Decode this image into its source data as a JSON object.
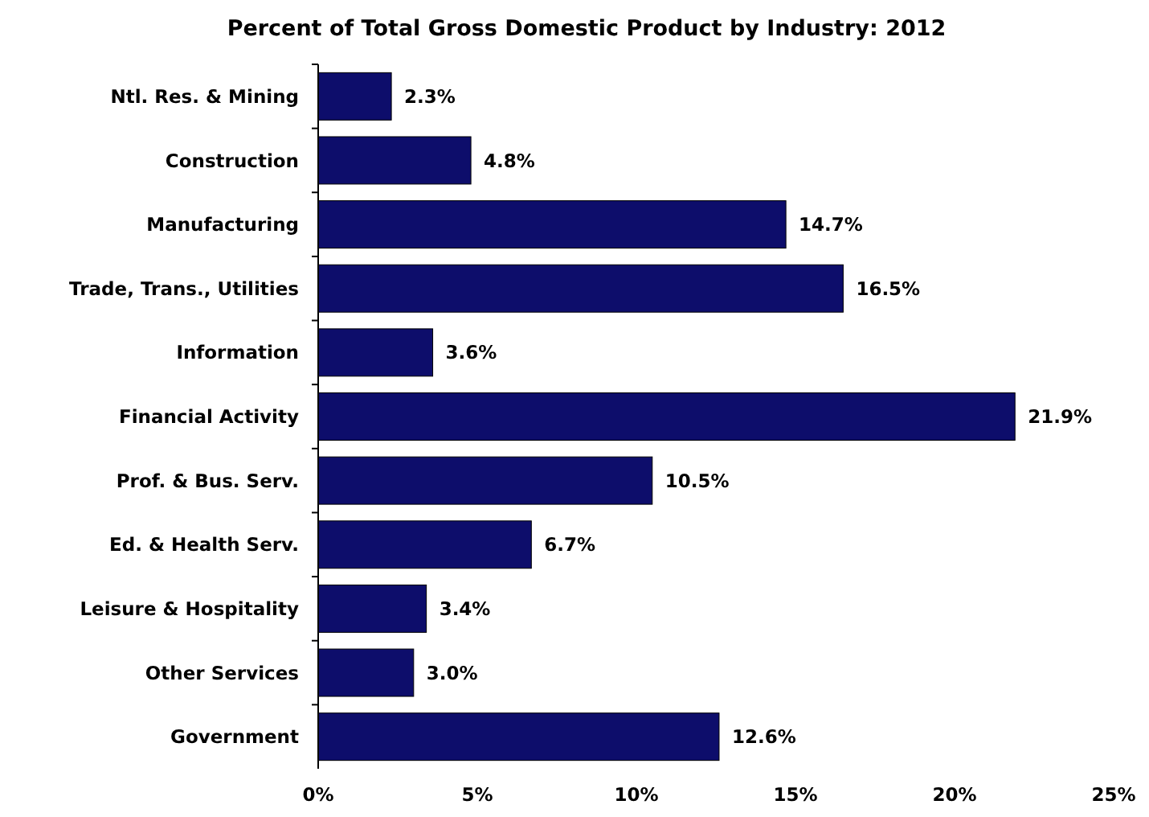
{
  "chart_data": {
    "type": "bar",
    "orientation": "horizontal",
    "title": "Percent of Total Gross Domestic Product by Industry: 2012",
    "categories": [
      "Ntl. Res. & Mining",
      "Construction",
      "Manufacturing",
      "Trade, Trans., Utilities",
      "Information",
      "Financial Activity",
      "Prof. & Bus. Serv.",
      "Ed. & Health Serv.",
      "Leisure & Hospitality",
      "Other Services",
      "Government"
    ],
    "values": [
      2.3,
      4.8,
      14.7,
      16.5,
      3.6,
      21.9,
      10.5,
      6.7,
      3.4,
      3.0,
      12.6
    ],
    "value_labels": [
      "2.3%",
      "4.8%",
      "14.7%",
      "16.5%",
      "3.6%",
      "21.9%",
      "10.5%",
      "6.7%",
      "3.4%",
      "3.0%",
      "12.6%"
    ],
    "color": "#0d0d6b",
    "xlim": [
      0,
      25
    ],
    "xticks": [
      {
        "value": 0,
        "label": "0%"
      },
      {
        "value": 5,
        "label": "5%"
      },
      {
        "value": 10,
        "label": "10%"
      },
      {
        "value": 15,
        "label": "15%"
      },
      {
        "value": 20,
        "label": "20%"
      },
      {
        "value": 25,
        "label": "25%"
      }
    ],
    "grid": false
  }
}
